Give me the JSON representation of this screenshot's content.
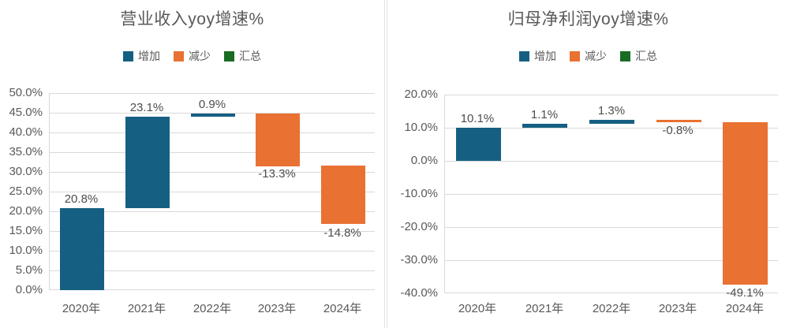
{
  "chart_data": [
    {
      "type": "waterfall",
      "title": "营业收入yoy增速%",
      "legend": [
        {
          "label": "增加",
          "color": "#156082"
        },
        {
          "label": "减少",
          "color": "#E97132"
        },
        {
          "label": "汇总",
          "color": "#196B24"
        }
      ],
      "categories": [
        "2020年",
        "2021年",
        "2022年",
        "2023年",
        "2024年"
      ],
      "values": [
        20.8,
        23.1,
        0.9,
        -13.3,
        -14.8
      ],
      "data_labels": [
        "20.8%",
        "23.1%",
        "0.9%",
        "-13.3%",
        "-14.8%"
      ],
      "ylim": [
        0,
        50
      ],
      "ytick_step": 5,
      "ytick_labels": [
        "0.0%",
        "5.0%",
        "10.0%",
        "15.0%",
        "20.0%",
        "25.0%",
        "30.0%",
        "35.0%",
        "40.0%",
        "45.0%",
        "50.0%"
      ],
      "grid": "on",
      "legend_position": "top",
      "increase_color": "#156082",
      "decrease_color": "#E97132",
      "total_color": "#196B24"
    },
    {
      "type": "waterfall",
      "title": "归母净利润yoy增速%",
      "legend": [
        {
          "label": "增加",
          "color": "#156082"
        },
        {
          "label": "减少",
          "color": "#E97132"
        },
        {
          "label": "汇总",
          "color": "#196B24"
        }
      ],
      "categories": [
        "2020年",
        "2021年",
        "2022年",
        "2023年",
        "2024年"
      ],
      "values": [
        10.1,
        1.1,
        1.3,
        -0.8,
        -49.1
      ],
      "data_labels": [
        "10.1%",
        "1.1%",
        "1.3%",
        "-0.8%",
        "-49.1%"
      ],
      "ylim": [
        -40,
        20
      ],
      "ytick_step": 10,
      "ytick_labels": [
        "-40.0%",
        "-30.0%",
        "-20.0%",
        "-10.0%",
        "0.0%",
        "10.0%",
        "20.0%"
      ],
      "grid": "on",
      "legend_position": "top",
      "increase_color": "#156082",
      "decrease_color": "#E97132",
      "total_color": "#196B24"
    }
  ]
}
